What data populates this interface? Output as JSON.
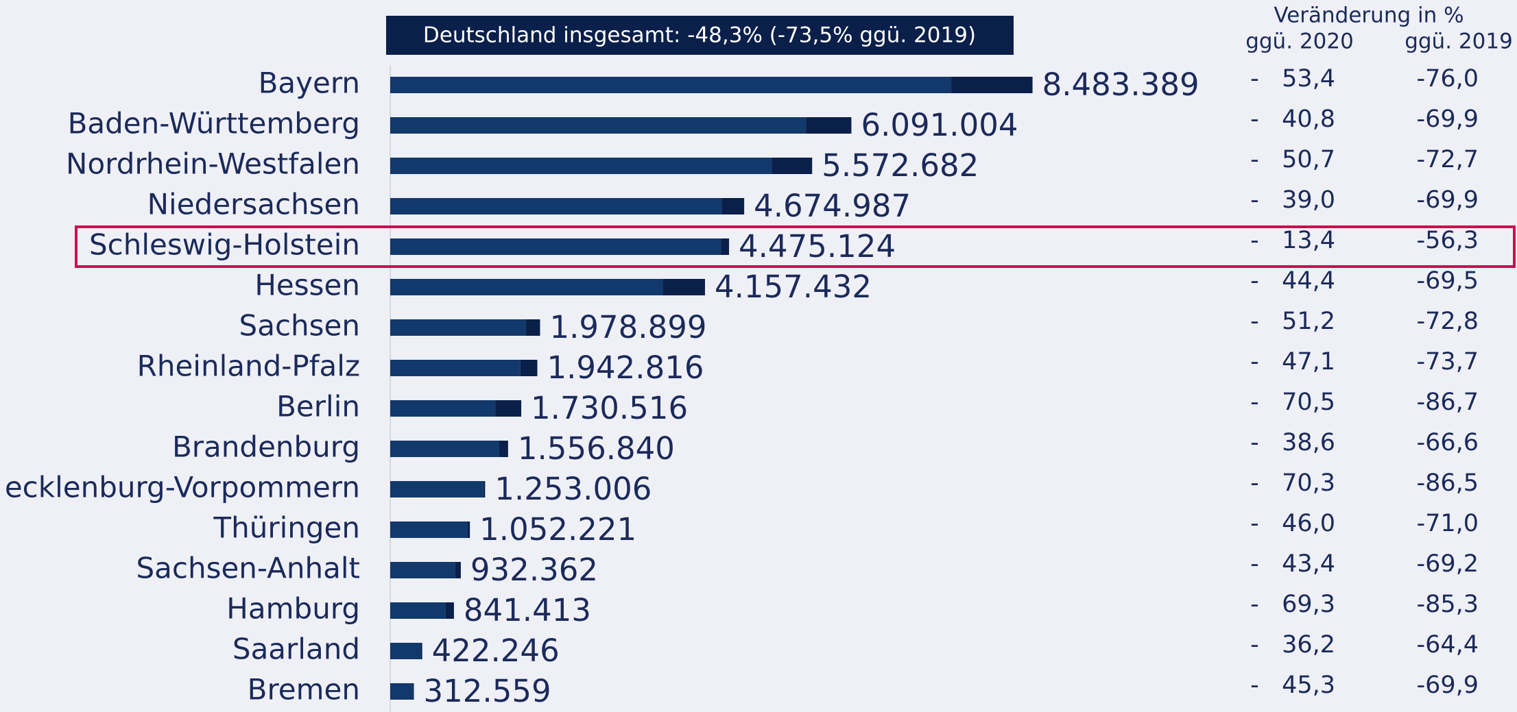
{
  "chart_data": {
    "type": "bar",
    "orientation": "horizontal",
    "annotation": "Deutschland insgesamt: -48,3% (-73,5% ggü. 2019)",
    "categories": [
      "Bayern",
      "Baden-Württemberg",
      "Nordrhein-Westfalen",
      "Niedersachsen",
      "Schleswig-Holstein",
      "Hessen",
      "Sachsen",
      "Rheinland-Pfalz",
      "Berlin",
      "Brandenburg",
      "ecklenburg-Vorpommern",
      "Thüringen",
      "Sachsen-Anhalt",
      "Hamburg",
      "Saarland",
      "Bremen"
    ],
    "values": [
      8483389,
      6091004,
      5572682,
      4674987,
      4475124,
      4157432,
      1978899,
      1942816,
      1730516,
      1556840,
      1253006,
      1052221,
      932362,
      841413,
      422246,
      312559
    ],
    "value_labels": [
      "8.483.389",
      "6.091.004",
      "5.572.682",
      "4.674.987",
      "4.475.124",
      "4.157.432",
      "1.978.899",
      "1.942.816",
      "1.730.516",
      "1.556.840",
      "1.253.006",
      "1.052.221",
      "932.362",
      "841.413",
      "422.246",
      "312.559"
    ],
    "segments": [
      7410000,
      5490000,
      5040000,
      4380000,
      4370000,
      3600000,
      1790000,
      1720000,
      1390000,
      1440000,
      1230000,
      1020000,
      860000,
      730000,
      400000,
      300000
    ],
    "color": "#12396b",
    "segment_color": "#0a1f4a",
    "xlim": [
      0,
      10000000
    ],
    "highlight_category": "Schleswig-Holstein",
    "highlight_color": "#c8104f",
    "table_title": "Veränderung in %",
    "columns": [
      {
        "name": "ggü. 2020",
        "values": [
          -53.4,
          -40.8,
          -50.7,
          -39.0,
          -13.4,
          -44.4,
          -51.2,
          -47.1,
          -70.5,
          -38.6,
          -70.3,
          -46.0,
          -43.4,
          -69.3,
          -36.2,
          -45.3
        ],
        "value_labels": [
          "-   53,4",
          "-   40,8",
          "-   50,7",
          "-   39,0",
          "-   13,4",
          "-   44,4",
          "-   51,2",
          "-   47,1",
          "-   70,5",
          "-   38,6",
          "-   70,3",
          "-   46,0",
          "-   43,4",
          "-   69,3",
          "-   36,2",
          "-   45,3"
        ]
      },
      {
        "name": "ggü. 2019",
        "values": [
          -76.0,
          -69.9,
          -72.7,
          -69.9,
          -56.3,
          -69.5,
          -72.8,
          -73.7,
          -86.7,
          -66.6,
          -86.5,
          -71.0,
          -69.2,
          -85.3,
          -64.4,
          -69.9
        ],
        "value_labels": [
          "-76,0",
          "-69,9",
          "-72,7",
          "-69,9",
          "-56,3",
          "-69,5",
          "-72,8",
          "-73,7",
          "-86,7",
          "-66,6",
          "-86,5",
          "-71,0",
          "-69,2",
          "-85,3",
          "-64,4",
          "-69,9"
        ]
      }
    ]
  }
}
